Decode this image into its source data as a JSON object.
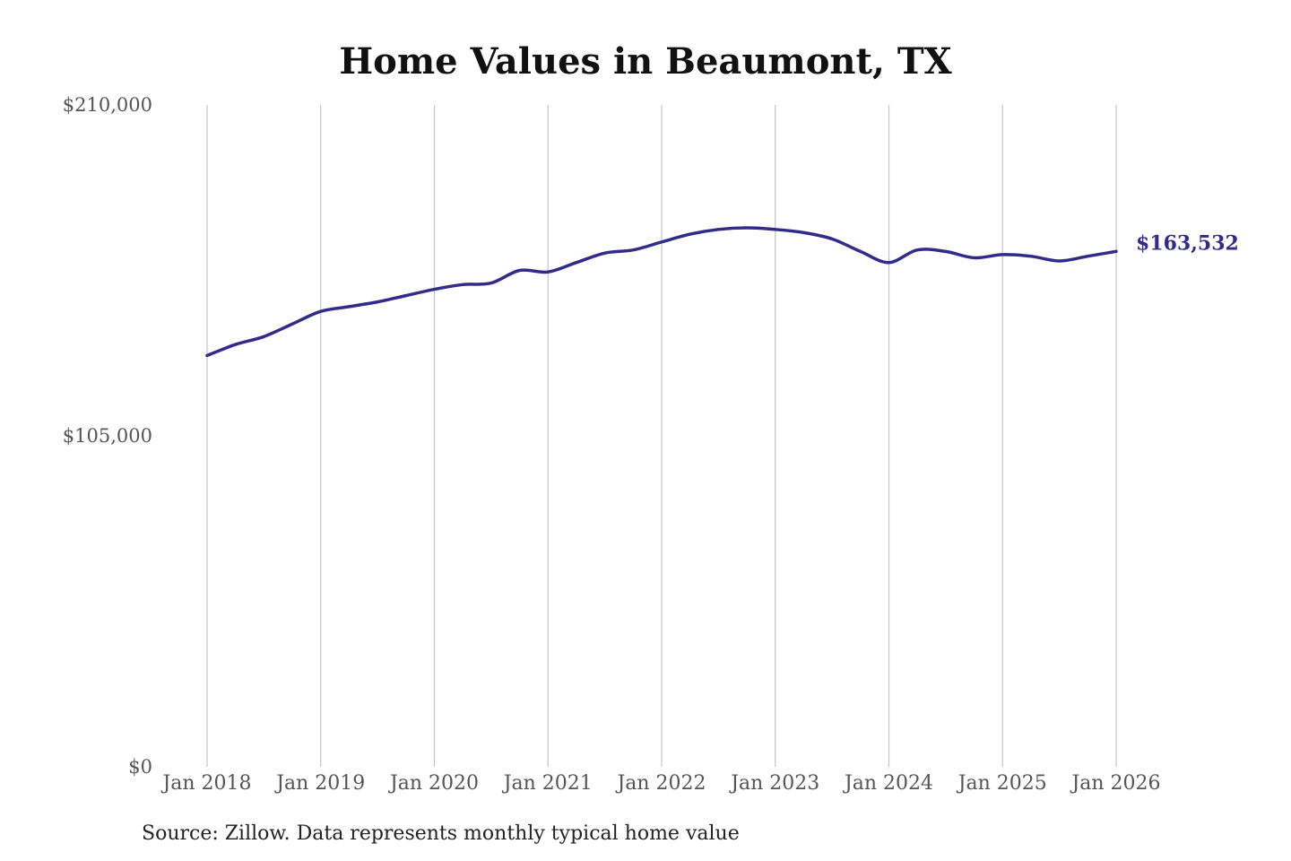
{
  "colors": {
    "line": "#332b8a",
    "grid": "#c4c4c4",
    "tick_text": "#555555",
    "title_text": "#111111"
  },
  "chart_data": {
    "type": "line",
    "title": "Home Values in Beaumont, TX",
    "source": "Source: Zillow. Data represents monthly typical home value",
    "xlabel": "",
    "ylabel": "",
    "ylim": [
      0,
      210000
    ],
    "xlim": [
      "2018-01",
      "2026-01"
    ],
    "y_ticks": [
      {
        "value": 0,
        "label": "$0"
      },
      {
        "value": 105000,
        "label": "$105,000"
      },
      {
        "value": 210000,
        "label": "$210,000"
      }
    ],
    "x_ticks": [
      {
        "value": "2018-01",
        "label": "Jan 2018"
      },
      {
        "value": "2019-01",
        "label": "Jan 2019"
      },
      {
        "value": "2020-01",
        "label": "Jan 2020"
      },
      {
        "value": "2021-01",
        "label": "Jan 2021"
      },
      {
        "value": "2022-01",
        "label": "Jan 2022"
      },
      {
        "value": "2023-01",
        "label": "Jan 2023"
      },
      {
        "value": "2024-01",
        "label": "Jan 2024"
      },
      {
        "value": "2025-01",
        "label": "Jan 2025"
      },
      {
        "value": "2026-01",
        "label": "Jan 2026"
      }
    ],
    "grid": {
      "vertical": true,
      "horizontal": false
    },
    "end_label": "$163,532",
    "series": [
      {
        "values": [
          {
            "x": "2018-01",
            "y": 130500
          },
          {
            "x": "2018-04",
            "y": 134000
          },
          {
            "x": "2018-07",
            "y": 136500
          },
          {
            "x": "2018-10",
            "y": 140500
          },
          {
            "x": "2019-01",
            "y": 144500
          },
          {
            "x": "2019-04",
            "y": 146000
          },
          {
            "x": "2019-07",
            "y": 147500
          },
          {
            "x": "2019-10",
            "y": 149500
          },
          {
            "x": "2020-01",
            "y": 151500
          },
          {
            "x": "2020-04",
            "y": 153000
          },
          {
            "x": "2020-07",
            "y": 153500
          },
          {
            "x": "2020-10",
            "y": 157500
          },
          {
            "x": "2021-01",
            "y": 157000
          },
          {
            "x": "2021-04",
            "y": 160000
          },
          {
            "x": "2021-07",
            "y": 163000
          },
          {
            "x": "2021-10",
            "y": 164000
          },
          {
            "x": "2022-01",
            "y": 166500
          },
          {
            "x": "2022-04",
            "y": 169000
          },
          {
            "x": "2022-07",
            "y": 170500
          },
          {
            "x": "2022-10",
            "y": 171000
          },
          {
            "x": "2023-01",
            "y": 170500
          },
          {
            "x": "2023-04",
            "y": 169500
          },
          {
            "x": "2023-07",
            "y": 167500
          },
          {
            "x": "2023-10",
            "y": 163500
          },
          {
            "x": "2024-01",
            "y": 160000
          },
          {
            "x": "2024-04",
            "y": 164000
          },
          {
            "x": "2024-07",
            "y": 163500
          },
          {
            "x": "2024-10",
            "y": 161500
          },
          {
            "x": "2025-01",
            "y": 162500
          },
          {
            "x": "2025-04",
            "y": 162000
          },
          {
            "x": "2025-07",
            "y": 160500
          },
          {
            "x": "2025-10",
            "y": 162000
          },
          {
            "x": "2026-01",
            "y": 163532
          }
        ]
      }
    ]
  }
}
